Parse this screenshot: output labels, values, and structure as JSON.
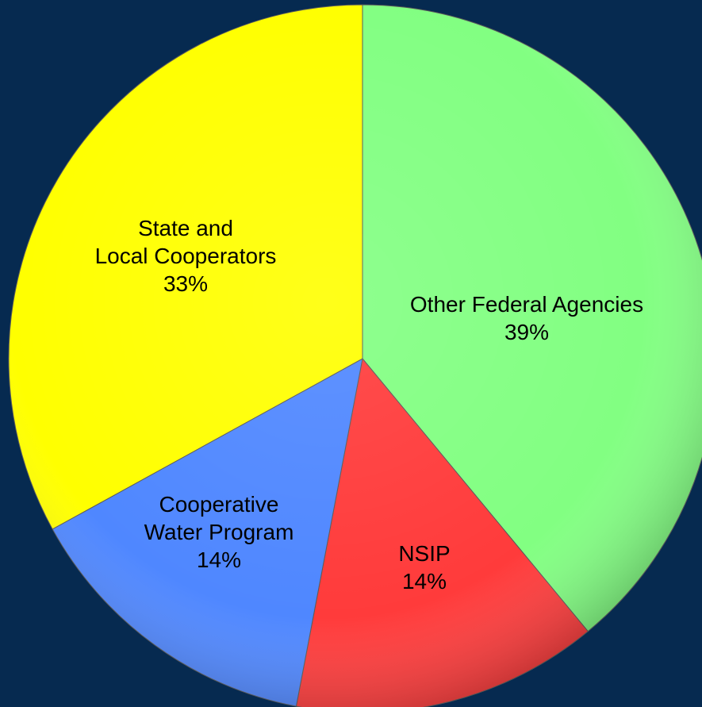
{
  "chart_data": {
    "type": "pie",
    "title": "",
    "slices": [
      {
        "name": "Other Federal Agencies",
        "value": 39,
        "percent_label": "39%",
        "color": "#82ff82",
        "label_lines": [
          "Other Federal Agencies",
          "39%"
        ]
      },
      {
        "name": "NSIP",
        "value": 14,
        "percent_label": "14%",
        "color": "#ff3b3b",
        "label_lines": [
          "NSIP",
          "14%"
        ]
      },
      {
        "name": "Cooperative Water Program",
        "value": 14,
        "percent_label": "14%",
        "color": "#4f87ff",
        "label_lines": [
          "Cooperative",
          "Water Program",
          "14%"
        ]
      },
      {
        "name": "State and Local Cooperators",
        "value": 33,
        "percent_label": "33%",
        "color": "#ffff00",
        "label_lines": [
          "State and",
          "Local Cooperators",
          "33%"
        ]
      }
    ],
    "start": "12 o'clock",
    "direction": "clockwise",
    "legend": "none",
    "background_color": "#062a50"
  }
}
